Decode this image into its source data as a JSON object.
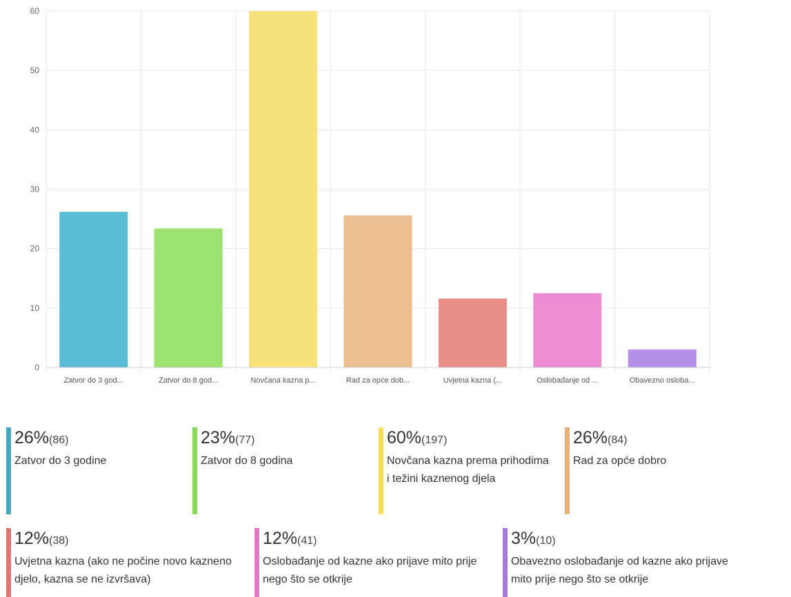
{
  "chart_data": {
    "type": "bar",
    "categories": [
      "Zatvor do 3 god...",
      "Zatvor do 8 god...",
      "Novčana kazna p...",
      "Rad za opće dob...",
      "Uvjetna kazna (...",
      "Oslobađanje od ...",
      "Obavezno osloba..."
    ],
    "values": [
      26.2,
      23.4,
      60,
      25.6,
      11.6,
      12.5,
      3.0
    ],
    "colors": [
      "#5bbdd3",
      "#9be271",
      "#f9e27b",
      "#ebbf90",
      "#e98d89",
      "#ec8dd4",
      "#b491e8"
    ],
    "ylim": [
      0,
      60
    ],
    "yticks": [
      0,
      10,
      20,
      30,
      40,
      50,
      60
    ],
    "grid": true
  },
  "legend": [
    {
      "pct": "26%",
      "count": "(86)",
      "label": "Zatvor do 3 godine",
      "color": "#3fa9c2"
    },
    {
      "pct": "23%",
      "count": "(77)",
      "label": "Zatvor do 8 godina",
      "color": "#86d95b"
    },
    {
      "pct": "60%",
      "count": "(197)",
      "label": "Novčana kazna prema prihodima i težini kaznenog djela",
      "color": "#f6dc5e"
    },
    {
      "pct": "26%",
      "count": "(84)",
      "label": "Rad za opće dobro",
      "color": "#e6b27c"
    },
    {
      "pct": "12%",
      "count": "(38)",
      "label": "Uvjetna kazna (ako ne počine novo kazneno djelo, kazna se ne izvršava)",
      "color": "#e37470"
    },
    {
      "pct": "12%",
      "count": "(41)",
      "label": "Oslobađanje od kazne ako prijave mito prije nego što se otkrije",
      "color": "#e576c9"
    },
    {
      "pct": "3%",
      "count": "(10)",
      "label": "Obavezno oslobađanje od kazne ako prijave mito prije nego što se otkrije",
      "color": "#a577e0"
    }
  ]
}
